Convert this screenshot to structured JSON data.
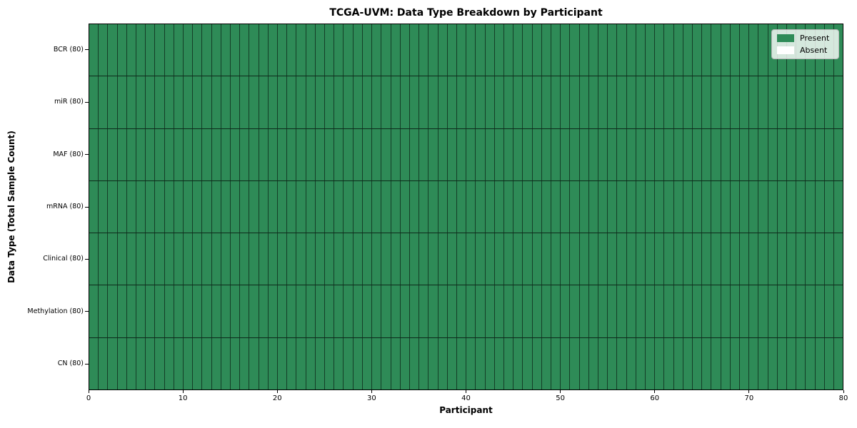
{
  "chart_data": {
    "type": "heatmap",
    "title": "TCGA-UVM: Data Type Breakdown by Participant",
    "xlabel": "Participant",
    "ylabel": "Data Type (Total Sample Count)",
    "x_range": [
      0,
      80
    ],
    "x_ticks": [
      0,
      10,
      20,
      30,
      40,
      50,
      60,
      70,
      80
    ],
    "n_participants": 80,
    "rows": [
      {
        "label": "BCR (80)",
        "total_samples": 80,
        "present_count": 80,
        "absent_count": 0
      },
      {
        "label": "miR (80)",
        "total_samples": 80,
        "present_count": 80,
        "absent_count": 0
      },
      {
        "label": "MAF (80)",
        "total_samples": 80,
        "present_count": 80,
        "absent_count": 0
      },
      {
        "label": "mRNA (80)",
        "total_samples": 80,
        "present_count": 80,
        "absent_count": 0
      },
      {
        "label": "Clinical (80)",
        "total_samples": 80,
        "present_count": 80,
        "absent_count": 0
      },
      {
        "label": "Methylation (80)",
        "total_samples": 80,
        "present_count": 80,
        "absent_count": 0
      },
      {
        "label": "CN (80)",
        "total_samples": 80,
        "present_count": 80,
        "absent_count": 0
      }
    ],
    "all_cells_present": true,
    "legend": {
      "position": "upper right",
      "entries": [
        {
          "label": "Present",
          "color": "#2e8b57"
        },
        {
          "label": "Absent",
          "color": "#ffffff"
        }
      ]
    },
    "colors": {
      "present": "#2e8b57",
      "absent": "#ffffff",
      "cell_edge": "rgba(0,0,0,0.6)",
      "axis": "#000000",
      "background": "#ffffff"
    },
    "grid": "per-cell black borders, no outer gridlines",
    "layout_hint": "rows listed top-to-bottom; x axis is participant index 0-80"
  }
}
